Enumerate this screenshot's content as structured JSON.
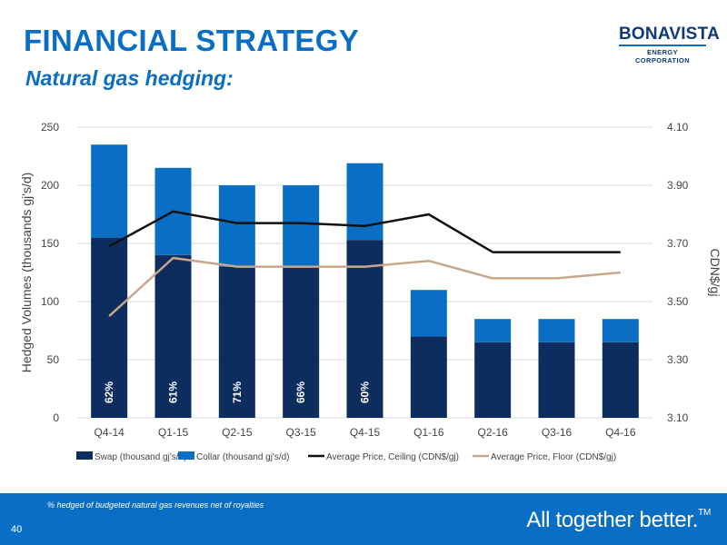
{
  "header": {
    "title": "FINANCIAL STRATEGY",
    "subtitle": "Natural gas hedging:"
  },
  "logo": {
    "name": "BONAVISTA",
    "subtitle": "ENERGY CORPORATION"
  },
  "footer": {
    "footnote": "% hedged of budgeted natural gas revenues net of royalties",
    "page_number": "40",
    "tagline": "All together better.",
    "tagline_mark": "TM"
  },
  "colors": {
    "swap": "#0c2d5e",
    "collar": "#0a6fc4",
    "ceiling": "#111111",
    "floor": "#c9a78a",
    "accent": "#0a6fc4"
  },
  "chart_data": {
    "type": "bar",
    "stacked": true,
    "categories": [
      "Q4-14",
      "Q1-15",
      "Q2-15",
      "Q3-15",
      "Q4-15",
      "Q1-16",
      "Q2-16",
      "Q3-16",
      "Q4-16"
    ],
    "series": [
      {
        "name": "Swap (thousand gj's/d)",
        "values": [
          155,
          140,
          130,
          130,
          153,
          70,
          65,
          65,
          65
        ]
      },
      {
        "name": "Collar (thousand gj's/d)",
        "values": [
          80,
          75,
          70,
          70,
          66,
          40,
          20,
          20,
          20
        ]
      }
    ],
    "line_series": [
      {
        "name": "Average Price, Ceiling (CDN$/gj)",
        "values": [
          null,
          3.81,
          3.77,
          3.77,
          3.76,
          3.8,
          3.67,
          3.67,
          3.67
        ],
        "start": 3.69
      },
      {
        "name": "Average Price, Floor (CDN$/gj)",
        "values": [
          3.45,
          3.65,
          3.62,
          3.62,
          3.62,
          3.64,
          3.58,
          3.58,
          3.6
        ]
      }
    ],
    "bar_labels": [
      "62%",
      "61%",
      "71%",
      "66%",
      "60%"
    ],
    "ylabel": "Hedged Volumes (thousands gj's/d)",
    "y2label": "CDN$/gj",
    "ylim": [
      0,
      250
    ],
    "y2lim": [
      3.1,
      4.1
    ],
    "yticks": [
      "0",
      "50",
      "100",
      "150",
      "200",
      "250"
    ],
    "y2ticks": [
      "3.10",
      "3.30",
      "3.50",
      "3.70",
      "3.90",
      "4.10"
    ],
    "grid": "horizontal",
    "legend_position": "bottom"
  }
}
